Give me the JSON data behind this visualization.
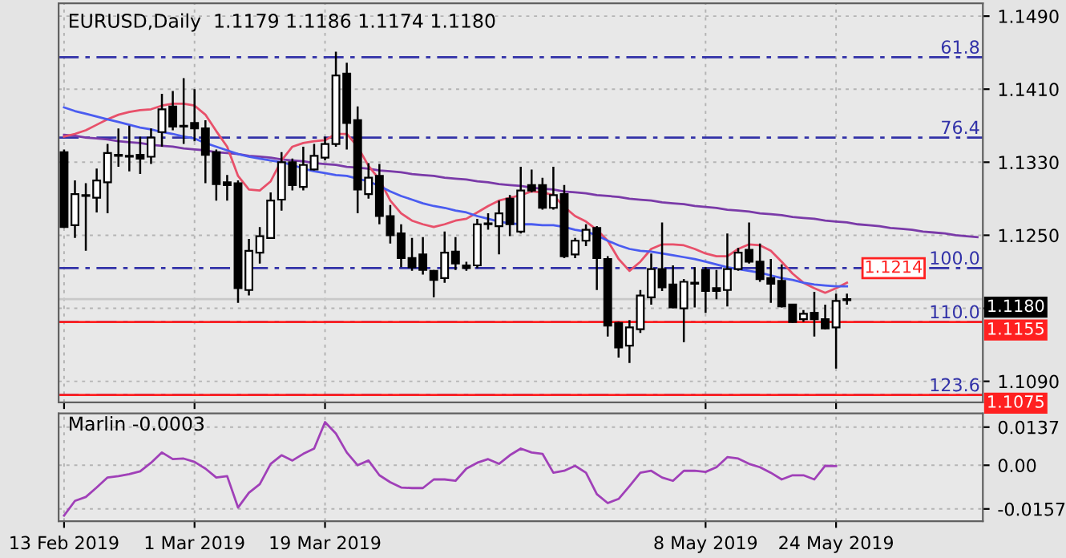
{
  "chart_data": [
    {
      "type": "candlestick",
      "title": "EURUSD,Daily  1.1179 1.1186 1.1174 1.1180",
      "categories": [
        null,
        null,
        null,
        null,
        null,
        null,
        null,
        null,
        null,
        null,
        null,
        null,
        null,
        null,
        null,
        null,
        null,
        null,
        null,
        null,
        null,
        null,
        null,
        null,
        null,
        null,
        null,
        null,
        null,
        null,
        null,
        null,
        null,
        null,
        null,
        null,
        null,
        null,
        null,
        null,
        null,
        null,
        null,
        null,
        null,
        null,
        null,
        null,
        null,
        null,
        null,
        null,
        null,
        null,
        null,
        null,
        null,
        null,
        null,
        null,
        null,
        null,
        null,
        null,
        null,
        null,
        null,
        null,
        null,
        null,
        null,
        null,
        null,
        null,
        null,
        null,
        null,
        null,
        null,
        null,
        null,
        null,
        null,
        null,
        null
      ],
      "ohlc": [
        [
          1.1341,
          1.1344,
          1.1258,
          1.1259
        ],
        [
          1.1261,
          1.131,
          1.1247,
          1.1295
        ],
        [
          1.1293,
          1.1307,
          1.1233,
          1.1294
        ],
        [
          1.1291,
          1.1323,
          1.1275,
          1.131
        ],
        [
          1.1308,
          1.135,
          1.1274,
          1.134
        ],
        [
          1.1338,
          1.1367,
          1.1325,
          1.1337
        ],
        [
          1.1336,
          1.137,
          1.132,
          1.1337
        ],
        [
          1.1338,
          1.1358,
          1.1317,
          1.1334
        ],
        [
          1.1336,
          1.1367,
          1.1328,
          1.1357
        ],
        [
          1.1363,
          1.1405,
          1.1347,
          1.1388
        ],
        [
          1.1391,
          1.1408,
          1.1365,
          1.1369
        ],
        [
          1.137,
          1.1422,
          1.135,
          1.1369
        ],
        [
          1.1373,
          1.141,
          1.1353,
          1.1367
        ],
        [
          1.1367,
          1.1376,
          1.1307,
          1.1338
        ],
        [
          1.1341,
          1.1344,
          1.1288,
          1.1306
        ],
        [
          1.1308,
          1.1316,
          1.1288,
          1.1305
        ],
        [
          1.1307,
          1.131,
          1.1176,
          1.1192
        ],
        [
          1.119,
          1.1246,
          1.1184,
          1.1233
        ],
        [
          1.1231,
          1.1259,
          1.1219,
          1.1249
        ],
        [
          1.1247,
          1.1297,
          1.1246,
          1.1288
        ],
        [
          1.1289,
          1.1341,
          1.1277,
          1.133
        ],
        [
          1.133,
          1.1334,
          1.1299,
          1.1305
        ],
        [
          1.1303,
          1.1347,
          1.1299,
          1.1327
        ],
        [
          1.1322,
          1.135,
          1.1321,
          1.1337
        ],
        [
          1.1335,
          1.1358,
          1.1332,
          1.135
        ],
        [
          1.135,
          1.1451,
          1.1347,
          1.1425
        ],
        [
          1.1427,
          1.1439,
          1.1344,
          1.1373
        ],
        [
          1.1376,
          1.1391,
          1.1274,
          1.13
        ],
        [
          1.1295,
          1.1329,
          1.129,
          1.1313
        ],
        [
          1.1315,
          1.1328,
          1.1262,
          1.1271
        ],
        [
          1.1271,
          1.1283,
          1.1241,
          1.125
        ],
        [
          1.1252,
          1.1262,
          1.1215,
          1.1225
        ],
        [
          1.1225,
          1.1247,
          1.1211,
          1.1215
        ],
        [
          1.1229,
          1.1248,
          1.1207,
          1.1212
        ],
        [
          1.1211,
          1.1212,
          1.1182,
          1.1201
        ],
        [
          1.1203,
          1.1254,
          1.1198,
          1.1231
        ],
        [
          1.1232,
          1.1248,
          1.1212,
          1.1219
        ],
        [
          1.1217,
          1.1221,
          1.1211,
          1.1214
        ],
        [
          1.1217,
          1.1268,
          1.1214,
          1.1262
        ],
        [
          1.1262,
          1.1274,
          1.1256,
          1.1263
        ],
        [
          1.126,
          1.1288,
          1.1229,
          1.1274
        ],
        [
          1.129,
          1.1294,
          1.1249,
          1.1262
        ],
        [
          1.1254,
          1.1325,
          1.1252,
          1.1299
        ],
        [
          1.1305,
          1.1322,
          1.1297,
          1.1299
        ],
        [
          1.1305,
          1.1313,
          1.1278,
          1.128
        ],
        [
          1.128,
          1.1325,
          1.1278,
          1.1294
        ],
        [
          1.1295,
          1.1305,
          1.1225,
          1.1227
        ],
        [
          1.1229,
          1.1247,
          1.1225,
          1.1244
        ],
        [
          1.1244,
          1.1262,
          1.1238,
          1.1256
        ],
        [
          1.1258,
          1.126,
          1.119,
          1.1225
        ],
        [
          1.1224,
          1.1227,
          1.1139,
          1.1151
        ],
        [
          1.1154,
          1.1155,
          1.1116,
          1.1127
        ],
        [
          1.1129,
          1.1157,
          1.111,
          1.1149
        ],
        [
          1.1147,
          1.119,
          1.1143,
          1.1184
        ],
        [
          1.1182,
          1.123,
          1.1174,
          1.1213
        ],
        [
          1.1213,
          1.1264,
          1.1189,
          1.1193
        ],
        [
          1.1196,
          1.1217,
          1.117,
          1.1171
        ],
        [
          1.117,
          1.1202,
          1.1133,
          1.1199
        ],
        [
          1.1197,
          1.1215,
          1.1171,
          1.1198
        ],
        [
          1.1212,
          1.1215,
          1.1165,
          1.1189
        ],
        [
          1.1192,
          1.1212,
          1.118,
          1.1189
        ],
        [
          1.119,
          1.1252,
          1.1172,
          1.1213
        ],
        [
          1.1213,
          1.1236,
          1.1211,
          1.1231
        ],
        [
          1.1234,
          1.1264,
          1.1219,
          1.1221
        ],
        [
          1.1221,
          1.1241,
          1.1199,
          1.1202
        ],
        [
          1.1203,
          1.1224,
          1.1176,
          1.1197
        ],
        [
          1.12,
          1.1218,
          1.1171,
          1.1172
        ],
        [
          1.1174,
          1.1174,
          1.1154,
          1.1155
        ],
        [
          1.1158,
          1.1168,
          1.1155,
          1.1164
        ],
        [
          1.1165,
          1.1188,
          1.1139,
          1.1158
        ],
        [
          1.1158,
          1.1174,
          1.1147,
          1.1148
        ],
        [
          1.1149,
          1.1186,
          1.1104,
          1.1178
        ],
        [
          1.1179,
          1.1186,
          1.1174,
          1.118
        ],
        null,
        null,
        null,
        null,
        null,
        null,
        null,
        null,
        null,
        null,
        null,
        null
      ],
      "series": [
        {
          "type": "line",
          "color": "#e8506a",
          "values": [
            1.1358,
            1.1361,
            1.1365,
            1.1371,
            1.1377,
            1.1382,
            1.1385,
            1.1387,
            1.1388,
            1.1392,
            1.1394,
            1.1394,
            1.1392,
            1.1382,
            1.1364,
            1.1347,
            1.1315,
            1.13,
            1.1299,
            1.1309,
            1.1332,
            1.1347,
            1.1351,
            1.1353,
            1.1354,
            1.1361,
            1.1361,
            1.1347,
            1.1326,
            1.1311,
            1.1288,
            1.1274,
            1.1266,
            1.1262,
            1.1259,
            1.1262,
            1.1266,
            1.1268,
            1.1275,
            1.1282,
            1.1288,
            1.1291,
            1.1294,
            1.1298,
            1.1297,
            1.1294,
            1.1281,
            1.1271,
            1.1265,
            1.1256,
            1.1244,
            1.1224,
            1.1211,
            1.1221,
            1.1235,
            1.124,
            1.124,
            1.1239,
            1.1235,
            1.123,
            1.1227,
            1.1227,
            1.1235,
            1.124,
            1.1239,
            1.1233,
            1.1221,
            1.1208,
            1.1198,
            1.1192,
            1.1187,
            1.1192,
            1.1198,
            null,
            null,
            null,
            null,
            null,
            null,
            null,
            null,
            null,
            null,
            null,
            null
          ]
        },
        {
          "type": "line",
          "color": "#4a5cf0",
          "values": [
            1.139,
            1.1386,
            1.1383,
            1.138,
            1.1377,
            1.1374,
            1.1371,
            1.1368,
            1.1366,
            1.1363,
            1.1361,
            1.1358,
            1.1356,
            1.1351,
            1.1347,
            1.1343,
            1.1339,
            1.1336,
            1.1334,
            1.1332,
            1.133,
            1.1327,
            1.1323,
            1.132,
            1.1318,
            1.1316,
            1.1315,
            1.1312,
            1.1309,
            1.1304,
            1.1298,
            1.1293,
            1.1289,
            1.1285,
            1.1282,
            1.128,
            1.1277,
            1.1275,
            1.1271,
            1.1268,
            1.1265,
            1.1263,
            1.1262,
            1.1262,
            1.1261,
            1.1261,
            1.1259,
            1.1256,
            1.1254,
            1.125,
            1.1244,
            1.1239,
            1.1235,
            1.1233,
            1.1232,
            1.123,
            1.1228,
            1.1226,
            1.1224,
            1.1221,
            1.1218,
            1.1215,
            1.1213,
            1.1211,
            1.1209,
            1.1206,
            1.1203,
            1.1201,
            1.1198,
            1.1196,
            1.1195,
            1.1194,
            1.1194,
            null,
            null,
            null,
            null,
            null,
            null,
            null,
            null,
            null,
            null,
            null,
            null
          ]
        },
        {
          "type": "line",
          "color": "#7a3aa8",
          "values": [
            1.136,
            1.1359,
            1.1357,
            1.1356,
            1.1355,
            1.1353,
            1.1352,
            1.1351,
            1.1349,
            1.1348,
            1.1347,
            1.1345,
            1.1344,
            1.1343,
            1.1341,
            1.134,
            1.1339,
            1.1337,
            1.1336,
            1.1335,
            1.1333,
            1.1332,
            1.1331,
            1.1329,
            1.1328,
            1.1327,
            1.1325,
            1.1324,
            1.1323,
            1.1321,
            1.132,
            1.1319,
            1.1317,
            1.1316,
            1.1315,
            1.1313,
            1.1312,
            1.1311,
            1.1309,
            1.1308,
            1.1306,
            1.1305,
            1.1304,
            1.1302,
            1.1301,
            1.13,
            1.1298,
            1.1297,
            1.1296,
            1.1294,
            1.1293,
            1.1292,
            1.129,
            1.1289,
            1.1288,
            1.1286,
            1.1285,
            1.1284,
            1.1282,
            1.1281,
            1.128,
            1.1278,
            1.1277,
            1.1276,
            1.1274,
            1.1273,
            1.1272,
            1.127,
            1.1269,
            1.1268,
            1.1266,
            1.1265,
            1.1264,
            1.1262,
            1.1261,
            1.126,
            1.1258,
            1.1257,
            1.1256,
            1.1254,
            1.1253,
            1.1252,
            1.125,
            1.1249,
            1.1248
          ]
        }
      ],
      "ylim": [
        1.1067,
        1.1504
      ],
      "yticks": [
        {
          "value": 1.109,
          "label": "1.1090"
        },
        {
          "value": 1.117,
          "label": null
        },
        {
          "value": 1.125,
          "label": "1.1250"
        },
        {
          "value": 1.133,
          "label": "1.1330"
        },
        {
          "value": 1.141,
          "label": "1.1410"
        },
        {
          "value": 1.149,
          "label": "1.1490"
        }
      ],
      "ref_lines": [
        {
          "axis": "y",
          "value": 1.1445,
          "color": "#3232a8",
          "line_style": "dashed"
        },
        {
          "axis": "y",
          "value": 1.1357,
          "color": "#3232a8",
          "line_style": "dashed"
        },
        {
          "axis": "y",
          "value": 1.1214,
          "label": "1.1214",
          "color": "#3232a8",
          "line_style": "dashed"
        },
        {
          "axis": "y",
          "value": 1.1155,
          "color": "#3232a8",
          "line_style": "dashed"
        },
        {
          "axis": "y",
          "value": 1.1075,
          "color": "#3232a8",
          "line_style": "dashed"
        },
        {
          "axis": "y",
          "value": 1.118,
          "label": "1.1180",
          "color": "#c8c8c8",
          "line_style": "solid"
        },
        {
          "axis": "y",
          "value": 1.1155,
          "label": "1.1155",
          "color": "#ff2020",
          "line_style": "solid"
        },
        {
          "axis": "y",
          "value": 1.1075,
          "label": "1.1075",
          "color": "#ff2020",
          "line_style": "solid"
        }
      ],
      "annotations": [
        {
          "text": "61.8",
          "y": 1.1445
        },
        {
          "text": "76.4",
          "y": 1.1357
        },
        {
          "text": "100.0",
          "y": 1.1214
        },
        {
          "text": "110.0",
          "y": 1.1155
        },
        {
          "text": "123.6",
          "y": 1.1075
        }
      ],
      "grid": true,
      "tick_labels": "y"
    },
    {
      "type": "line",
      "title": "Marlin -0.0003",
      "categories": [
        "13 Feb 2019",
        null,
        null,
        null,
        null,
        null,
        null,
        null,
        null,
        null,
        null,
        null,
        "1 Mar 2019",
        null,
        null,
        null,
        null,
        null,
        null,
        null,
        null,
        null,
        null,
        null,
        "19 Mar 2019",
        null,
        null,
        null,
        null,
        null,
        null,
        null,
        null,
        null,
        null,
        null,
        null,
        null,
        null,
        null,
        null,
        null,
        null,
        null,
        null,
        null,
        null,
        null,
        null,
        null,
        null,
        null,
        null,
        null,
        null,
        null,
        null,
        null,
        null,
        "8 May 2019",
        null,
        null,
        null,
        null,
        null,
        null,
        null,
        null,
        null,
        null,
        null,
        "24 May 2019",
        null,
        null,
        null,
        null,
        null,
        null,
        null,
        null,
        null,
        null,
        null,
        null,
        null
      ],
      "series": [
        {
          "color": "#a040b8",
          "values": [
            -0.0181,
            -0.0128,
            -0.0114,
            -0.008,
            -0.0044,
            -0.0039,
            -0.0032,
            -0.0022,
            0.0009,
            0.0046,
            0.0022,
            0.0024,
            0.0012,
            -0.0012,
            -0.0044,
            -0.0039,
            -0.0152,
            -0.0099,
            -0.0068,
            0.0005,
            0.0036,
            0.0017,
            0.0041,
            0.006,
            0.0155,
            0.0114,
            0.0046,
            0.0,
            0.0017,
            -0.0036,
            -0.0061,
            -0.008,
            -0.0082,
            -0.0082,
            -0.0051,
            -0.0051,
            -0.0056,
            -0.0012,
            0.0009,
            0.0022,
            0.0005,
            0.0036,
            0.006,
            0.0046,
            0.0041,
            -0.0027,
            -0.002,
            -0.0002,
            -0.0027,
            -0.0104,
            -0.0136,
            -0.0121,
            -0.0075,
            -0.0027,
            -0.002,
            -0.0044,
            -0.0056,
            -0.002,
            -0.002,
            -0.0024,
            -0.0007,
            0.0029,
            0.0024,
            0.0005,
            -0.0007,
            -0.0027,
            -0.0051,
            -0.0036,
            -0.0036,
            -0.0051,
            -0.0002,
            -0.0003,
            null,
            null,
            null,
            null,
            null,
            null,
            null,
            null,
            null,
            null,
            null,
            null,
            null
          ]
        }
      ],
      "ylim": [
        -0.0201,
        0.0186
      ],
      "yticks": [
        0.0137,
        {
          "value": 0,
          "label": "0.00"
        },
        -0.0157
      ],
      "grid": true
    }
  ]
}
